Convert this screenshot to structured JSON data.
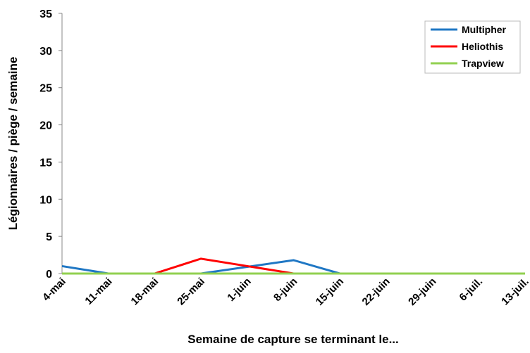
{
  "chart_data": {
    "type": "line",
    "categories": [
      "4-mai",
      "11-mai",
      "18-mai",
      "25-mai",
      "1-juin",
      "8-juin",
      "15-juin",
      "22-juin",
      "29-juin",
      "6-juil.",
      "13-juil."
    ],
    "series": [
      {
        "name": "Multipher",
        "color": "#1f77c4",
        "values": [
          1,
          0,
          0,
          0,
          0.9,
          1.8,
          0,
          0,
          0,
          0,
          0
        ]
      },
      {
        "name": "Heliothis",
        "color": "#ff0000",
        "values": [
          null,
          null,
          0,
          2,
          1,
          0,
          0,
          0,
          0,
          0,
          0
        ]
      },
      {
        "name": "Trapview",
        "color": "#92d050",
        "values": [
          0,
          0,
          0,
          0,
          0,
          0,
          0,
          0,
          0,
          0,
          0
        ]
      }
    ],
    "ylim": [
      0,
      35
    ],
    "yticks": [
      0,
      5,
      10,
      15,
      20,
      25,
      30,
      35
    ],
    "xlabel": "Semaine de capture se terminant le...",
    "ylabel": "Légionnaires / piège / semaine",
    "legend": "upper right",
    "grid": false
  }
}
